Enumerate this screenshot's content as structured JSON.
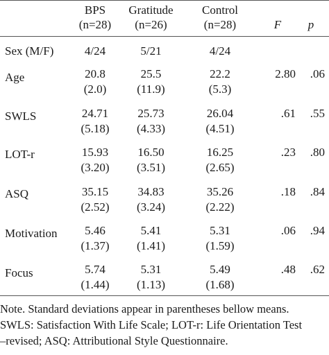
{
  "header": {
    "groups": [
      {
        "name": "BPS",
        "n": "(n=28)"
      },
      {
        "name": "Gratitude",
        "n": "(n=26)"
      },
      {
        "name": "Control",
        "n": "(n=28)"
      }
    ],
    "f_label": "F",
    "p_label": "p"
  },
  "rows": [
    {
      "label": "Sex (M/F)",
      "bps": "4/24",
      "bps_sd": "",
      "grat": "5/21",
      "grat_sd": "",
      "ctrl": "4/24",
      "ctrl_sd": "",
      "f": "",
      "p": ""
    },
    {
      "label": "Age",
      "bps": "20.8",
      "bps_sd": "(2.0)",
      "grat": "25.5",
      "grat_sd": "(11.9)",
      "ctrl": "22.2",
      "ctrl_sd": "(5.3)",
      "f": "2.80",
      "p": ".06"
    },
    {
      "label": "SWLS",
      "bps": "24.71",
      "bps_sd": "(5.18)",
      "grat": "25.73",
      "grat_sd": "(4.33)",
      "ctrl": "26.04",
      "ctrl_sd": "(4.51)",
      "f": ".61",
      "p": ".55"
    },
    {
      "label": "LOT-r",
      "bps": "15.93",
      "bps_sd": "(3.20)",
      "grat": "16.50",
      "grat_sd": "(3.51)",
      "ctrl": "16.25",
      "ctrl_sd": "(2.65)",
      "f": ".23",
      "p": ".80"
    },
    {
      "label": "ASQ",
      "bps": "35.15",
      "bps_sd": "(2.52)",
      "grat": "34.83",
      "grat_sd": "(3.24)",
      "ctrl": "35.26",
      "ctrl_sd": "(2.22)",
      "f": ".18",
      "p": ".84"
    },
    {
      "label": "Motivation",
      "bps": "5.46",
      "bps_sd": "(1.37)",
      "grat": "5.41",
      "grat_sd": "(1.41)",
      "ctrl": "5.31",
      "ctrl_sd": "(1.59)",
      "f": ".06",
      "p": ".94"
    },
    {
      "label": "Focus",
      "bps": "5.74",
      "bps_sd": "(1.44)",
      "grat": "5.31",
      "grat_sd": "(1.13)",
      "ctrl": "5.49",
      "ctrl_sd": "(1.68)",
      "f": ".48",
      "p": ".62"
    }
  ],
  "note": {
    "line1": "Note. Standard deviations appear in parentheses bellow means.",
    "line2": "SWLS: Satisfaction With Life Scale; LOT-r: Life Orientation Test",
    "line3": "–revised; ASQ: Attributional Style Questionnaire."
  }
}
